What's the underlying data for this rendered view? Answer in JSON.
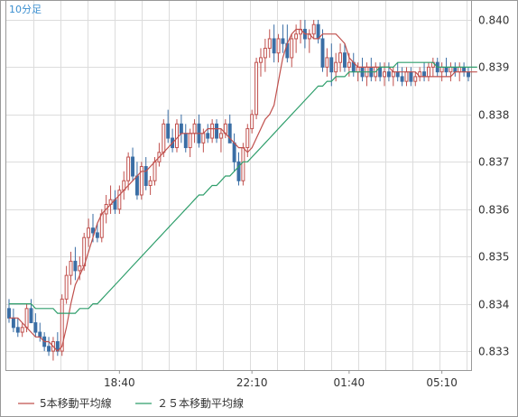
{
  "chart_data": {
    "type": "candlestick",
    "timeframe_label": "10分足",
    "x_tick_labels": [
      "18:40",
      "22:10",
      "01:40",
      "05:10"
    ],
    "y_tick_labels": [
      "0.833",
      "0.834",
      "0.835",
      "0.836",
      "0.837",
      "0.838",
      "0.839",
      "0.840"
    ],
    "ylim": [
      0.8326,
      0.8404
    ],
    "grid": true,
    "legend_position": "bottom-left",
    "colors": {
      "up": "#c0504d",
      "down": "#3a6ea5",
      "ma5": "#c0504d",
      "ma25": "#2e9e6b",
      "grid": "#dcdcdc",
      "border": "#999999",
      "corner_label": "#3b8fd0"
    },
    "series": [
      {
        "name": "5本移動平均線",
        "color": "#c0504d",
        "values": [
          0.8337,
          0.8337,
          0.8337,
          0.8336,
          0.8335,
          0.8334,
          0.8333,
          0.8333,
          0.8332,
          0.8332,
          0.8331,
          0.833,
          0.8331,
          0.8335,
          0.834,
          0.8344,
          0.8346,
          0.8348,
          0.8351,
          0.8354,
          0.8357,
          0.8359,
          0.836,
          0.8361,
          0.8362,
          0.8363,
          0.8364,
          0.8365,
          0.8366,
          0.8367,
          0.8368,
          0.8368,
          0.8369,
          0.837,
          0.8371,
          0.8372,
          0.8373,
          0.8374,
          0.8375,
          0.8376,
          0.8376,
          0.8376,
          0.8376,
          0.8376,
          0.8376,
          0.8377,
          0.8377,
          0.8377,
          0.8377,
          0.8376,
          0.8375,
          0.8374,
          0.8373,
          0.8373,
          0.8372,
          0.8373,
          0.8375,
          0.8377,
          0.8379,
          0.838,
          0.8382,
          0.8387,
          0.8392,
          0.8395,
          0.8397,
          0.8398,
          0.8398,
          0.8397,
          0.8397,
          0.8396,
          0.8396,
          0.8397,
          0.8397,
          0.8397,
          0.8397,
          0.8396,
          0.8395,
          0.8392,
          0.8391,
          0.839,
          0.839,
          0.839,
          0.839,
          0.839,
          0.839,
          0.839,
          0.839,
          0.8389,
          0.8389,
          0.8389,
          0.8389,
          0.8389,
          0.8389,
          0.8388,
          0.8388,
          0.8388,
          0.8388,
          0.8388,
          0.8388,
          0.8388,
          0.8388,
          0.8389,
          0.8389,
          0.8389,
          0.8389,
          0.8389,
          0.8389
        ]
      },
      {
        "name": "２５本移動平均線",
        "color": "#2e9e6b",
        "values": [
          0.834,
          0.834,
          0.834,
          0.834,
          0.834,
          0.834,
          0.8339,
          0.8339,
          0.8339,
          0.8339,
          0.8339,
          0.8338,
          0.8338,
          0.8338,
          0.8338,
          0.8338,
          0.8339,
          0.8339,
          0.8339,
          0.834,
          0.834,
          0.8341,
          0.8342,
          0.8343,
          0.8344,
          0.8345,
          0.8346,
          0.8347,
          0.8348,
          0.8349,
          0.835,
          0.8351,
          0.8352,
          0.8353,
          0.8354,
          0.8355,
          0.8356,
          0.8357,
          0.8358,
          0.8359,
          0.836,
          0.8361,
          0.8362,
          0.8363,
          0.8363,
          0.8364,
          0.8365,
          0.8365,
          0.8366,
          0.8367,
          0.8367,
          0.8368,
          0.8369,
          0.837,
          0.837,
          0.8371,
          0.8372,
          0.8373,
          0.8374,
          0.8375,
          0.8376,
          0.8377,
          0.8378,
          0.8379,
          0.838,
          0.8381,
          0.8382,
          0.8383,
          0.8384,
          0.8385,
          0.8386,
          0.8386,
          0.8387,
          0.8387,
          0.8388,
          0.8388,
          0.8388,
          0.8389,
          0.8389,
          0.8389,
          0.8389,
          0.8389,
          0.8389,
          0.8389,
          0.839,
          0.839,
          0.839,
          0.839,
          0.8391,
          0.8391,
          0.8391,
          0.8391,
          0.8391,
          0.8391,
          0.8391,
          0.8391,
          0.8391,
          0.839,
          0.839,
          0.839,
          0.839,
          0.839,
          0.839,
          0.839,
          0.839,
          0.839,
          0.839
        ]
      }
    ],
    "candles": [
      [
        0.8339,
        0.8341,
        0.8336,
        0.8337
      ],
      [
        0.8337,
        0.8339,
        0.8334,
        0.8335
      ],
      [
        0.8335,
        0.8337,
        0.8333,
        0.8334
      ],
      [
        0.8334,
        0.8336,
        0.8333,
        0.8335
      ],
      [
        0.8335,
        0.834,
        0.8334,
        0.8339
      ],
      [
        0.8339,
        0.8341,
        0.8336,
        0.8336
      ],
      [
        0.8336,
        0.8338,
        0.8333,
        0.8334
      ],
      [
        0.8334,
        0.8336,
        0.8332,
        0.8333
      ],
      [
        0.8333,
        0.8334,
        0.833,
        0.8331
      ],
      [
        0.8331,
        0.8333,
        0.8329,
        0.833
      ],
      [
        0.833,
        0.8333,
        0.8328,
        0.8332
      ],
      [
        0.8332,
        0.8334,
        0.8329,
        0.833
      ],
      [
        0.833,
        0.8342,
        0.8329,
        0.8341
      ],
      [
        0.8341,
        0.8348,
        0.834,
        0.8346
      ],
      [
        0.8346,
        0.8351,
        0.8344,
        0.8349
      ],
      [
        0.8349,
        0.8352,
        0.8345,
        0.8347
      ],
      [
        0.8347,
        0.835,
        0.8345,
        0.8348
      ],
      [
        0.8348,
        0.8355,
        0.8347,
        0.8354
      ],
      [
        0.8354,
        0.8358,
        0.8352,
        0.8356
      ],
      [
        0.8356,
        0.8359,
        0.8353,
        0.8355
      ],
      [
        0.8355,
        0.8357,
        0.8353,
        0.8354
      ],
      [
        0.8354,
        0.836,
        0.8353,
        0.8359
      ],
      [
        0.8359,
        0.8363,
        0.8357,
        0.8361
      ],
      [
        0.8361,
        0.8365,
        0.8359,
        0.8362
      ],
      [
        0.8362,
        0.8364,
        0.8359,
        0.836
      ],
      [
        0.836,
        0.8365,
        0.8359,
        0.8364
      ],
      [
        0.8364,
        0.8368,
        0.8362,
        0.8366
      ],
      [
        0.8366,
        0.8372,
        0.8364,
        0.8371
      ],
      [
        0.8371,
        0.8373,
        0.8366,
        0.8367
      ],
      [
        0.8367,
        0.837,
        0.8362,
        0.8363
      ],
      [
        0.8363,
        0.837,
        0.8362,
        0.8369
      ],
      [
        0.8369,
        0.8371,
        0.8364,
        0.8365
      ],
      [
        0.8365,
        0.8367,
        0.8363,
        0.8366
      ],
      [
        0.8366,
        0.8371,
        0.8365,
        0.837
      ],
      [
        0.837,
        0.8374,
        0.8369,
        0.8372
      ],
      [
        0.8372,
        0.8379,
        0.8371,
        0.8378
      ],
      [
        0.8378,
        0.8381,
        0.8374,
        0.8375
      ],
      [
        0.8375,
        0.8377,
        0.8372,
        0.8373
      ],
      [
        0.8373,
        0.8379,
        0.8372,
        0.8378
      ],
      [
        0.8378,
        0.838,
        0.8374,
        0.8376
      ],
      [
        0.8376,
        0.8378,
        0.8372,
        0.8373
      ],
      [
        0.8373,
        0.8377,
        0.8371,
        0.8376
      ],
      [
        0.8376,
        0.8379,
        0.8374,
        0.8378
      ],
      [
        0.8378,
        0.838,
        0.8373,
        0.8374
      ],
      [
        0.8374,
        0.8377,
        0.8372,
        0.8376
      ],
      [
        0.8376,
        0.8378,
        0.8374,
        0.8375
      ],
      [
        0.8375,
        0.8379,
        0.8374,
        0.8378
      ],
      [
        0.8378,
        0.8379,
        0.8374,
        0.8375
      ],
      [
        0.8375,
        0.8377,
        0.8372,
        0.8376
      ],
      [
        0.8376,
        0.8379,
        0.8375,
        0.8378
      ],
      [
        0.8378,
        0.838,
        0.8374,
        0.8374
      ],
      [
        0.8374,
        0.8376,
        0.8368,
        0.837
      ],
      [
        0.837,
        0.8372,
        0.8365,
        0.8366
      ],
      [
        0.8366,
        0.8374,
        0.8365,
        0.8373
      ],
      [
        0.8373,
        0.8378,
        0.8371,
        0.8377
      ],
      [
        0.8377,
        0.8381,
        0.8376,
        0.838
      ],
      [
        0.838,
        0.8392,
        0.8379,
        0.8391
      ],
      [
        0.8391,
        0.8394,
        0.8388,
        0.8392
      ],
      [
        0.8392,
        0.8396,
        0.8389,
        0.8394
      ],
      [
        0.8394,
        0.8398,
        0.8392,
        0.8396
      ],
      [
        0.8396,
        0.8399,
        0.8391,
        0.8393
      ],
      [
        0.8393,
        0.8397,
        0.8391,
        0.8396
      ],
      [
        0.8396,
        0.8399,
        0.8393,
        0.8395
      ],
      [
        0.8395,
        0.8399,
        0.8391,
        0.8392
      ],
      [
        0.8392,
        0.8397,
        0.839,
        0.8396
      ],
      [
        0.8396,
        0.8399,
        0.8393,
        0.8397
      ],
      [
        0.8397,
        0.84,
        0.8395,
        0.8398
      ],
      [
        0.8398,
        0.84,
        0.8394,
        0.8396
      ],
      [
        0.8396,
        0.8398,
        0.8393,
        0.8397
      ],
      [
        0.8397,
        0.84,
        0.8396,
        0.8399
      ],
      [
        0.8399,
        0.84,
        0.8395,
        0.8396
      ],
      [
        0.8396,
        0.8398,
        0.8389,
        0.839
      ],
      [
        0.839,
        0.8394,
        0.8388,
        0.8392
      ],
      [
        0.8392,
        0.8395,
        0.8386,
        0.8389
      ],
      [
        0.8389,
        0.8393,
        0.8387,
        0.8391
      ],
      [
        0.8391,
        0.8395,
        0.8389,
        0.8393
      ],
      [
        0.8393,
        0.8395,
        0.8389,
        0.839
      ],
      [
        0.839,
        0.8393,
        0.8388,
        0.8391
      ],
      [
        0.8391,
        0.8393,
        0.8388,
        0.8389
      ],
      [
        0.8389,
        0.8391,
        0.8387,
        0.839
      ],
      [
        0.839,
        0.8392,
        0.8387,
        0.8388
      ],
      [
        0.8388,
        0.8391,
        0.8386,
        0.839
      ],
      [
        0.839,
        0.8392,
        0.8387,
        0.8388
      ],
      [
        0.8388,
        0.8391,
        0.8387,
        0.839
      ],
      [
        0.839,
        0.8391,
        0.8387,
        0.8388
      ],
      [
        0.8388,
        0.8391,
        0.8386,
        0.8389
      ],
      [
        0.8389,
        0.8391,
        0.8387,
        0.8388
      ],
      [
        0.8388,
        0.839,
        0.8386,
        0.8389
      ],
      [
        0.8389,
        0.8391,
        0.8387,
        0.8388
      ],
      [
        0.8388,
        0.839,
        0.8386,
        0.8387
      ],
      [
        0.8387,
        0.839,
        0.8386,
        0.8389
      ],
      [
        0.8389,
        0.839,
        0.8386,
        0.8387
      ],
      [
        0.8387,
        0.8389,
        0.8386,
        0.8388
      ],
      [
        0.8388,
        0.839,
        0.8387,
        0.8389
      ],
      [
        0.8389,
        0.8391,
        0.8387,
        0.8388
      ],
      [
        0.8388,
        0.8391,
        0.8387,
        0.839
      ],
      [
        0.839,
        0.8392,
        0.8388,
        0.8391
      ],
      [
        0.8391,
        0.8392,
        0.8388,
        0.8389
      ],
      [
        0.8389,
        0.8391,
        0.8387,
        0.839
      ],
      [
        0.839,
        0.8392,
        0.8388,
        0.8389
      ],
      [
        0.8389,
        0.8391,
        0.8387,
        0.839
      ],
      [
        0.839,
        0.8391,
        0.8388,
        0.8389
      ],
      [
        0.8389,
        0.8391,
        0.8387,
        0.839
      ],
      [
        0.839,
        0.8391,
        0.8388,
        0.8389
      ],
      [
        0.8389,
        0.839,
        0.8387,
        0.8388
      ]
    ],
    "x_tick_indices": [
      25,
      55,
      77,
      98
    ]
  }
}
